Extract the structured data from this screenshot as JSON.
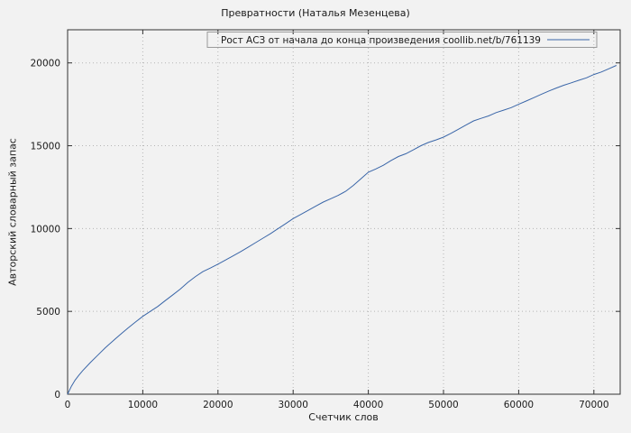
{
  "page": {
    "background": "#f2f2f2"
  },
  "chart_data": {
    "type": "line",
    "title": "Превратности (Наталья Мезенцева)",
    "xlabel": "Счетчик слов",
    "ylabel": "Авторский словарный запас",
    "xlim": [
      0,
      73500
    ],
    "ylim": [
      0,
      22000
    ],
    "xticks": [
      0,
      10000,
      20000,
      30000,
      40000,
      50000,
      60000,
      70000
    ],
    "yticks": [
      0,
      5000,
      10000,
      15000,
      20000
    ],
    "grid": true,
    "legend_position": "top-center",
    "axis_color": "#333333",
    "grid_color": "#b5b5b5",
    "text_color": "#1a1a1a",
    "series": [
      {
        "name": "Рост АСЗ от начала до конца произведения coollib.net/b/761139",
        "color": "#3a66a8",
        "x": [
          0,
          500,
          1000,
          1500,
          2000,
          3000,
          4000,
          5000,
          6000,
          7000,
          8000,
          9000,
          10000,
          11000,
          12000,
          13000,
          14000,
          15000,
          16000,
          17000,
          18000,
          19000,
          20000,
          21000,
          22000,
          23000,
          24000,
          25000,
          26000,
          27000,
          28000,
          29000,
          30000,
          31000,
          32000,
          33000,
          34000,
          35000,
          36000,
          37000,
          38000,
          39000,
          40000,
          41000,
          42000,
          43000,
          44000,
          45000,
          46000,
          47000,
          48000,
          49000,
          50000,
          51000,
          52000,
          53000,
          54000,
          55000,
          56000,
          57000,
          58000,
          59000,
          60000,
          61000,
          62000,
          63000,
          64000,
          65000,
          66000,
          67000,
          68000,
          69000,
          70000,
          71000,
          72000,
          73000
        ],
        "y": [
          0,
          480,
          850,
          1150,
          1420,
          1900,
          2350,
          2800,
          3200,
          3600,
          3980,
          4350,
          4700,
          5000,
          5300,
          5650,
          6000,
          6350,
          6750,
          7100,
          7400,
          7620,
          7850,
          8100,
          8350,
          8600,
          8870,
          9150,
          9420,
          9700,
          10000,
          10300,
          10600,
          10850,
          11100,
          11350,
          11600,
          11800,
          12000,
          12250,
          12600,
          13000,
          13400,
          13600,
          13820,
          14100,
          14350,
          14520,
          14750,
          15000,
          15200,
          15350,
          15520,
          15750,
          16000,
          16250,
          16500,
          16650,
          16800,
          17000,
          17150,
          17300,
          17500,
          17700,
          17900,
          18100,
          18300,
          18480,
          18650,
          18800,
          18950,
          19100,
          19300,
          19450,
          19650,
          19850
        ]
      }
    ]
  }
}
